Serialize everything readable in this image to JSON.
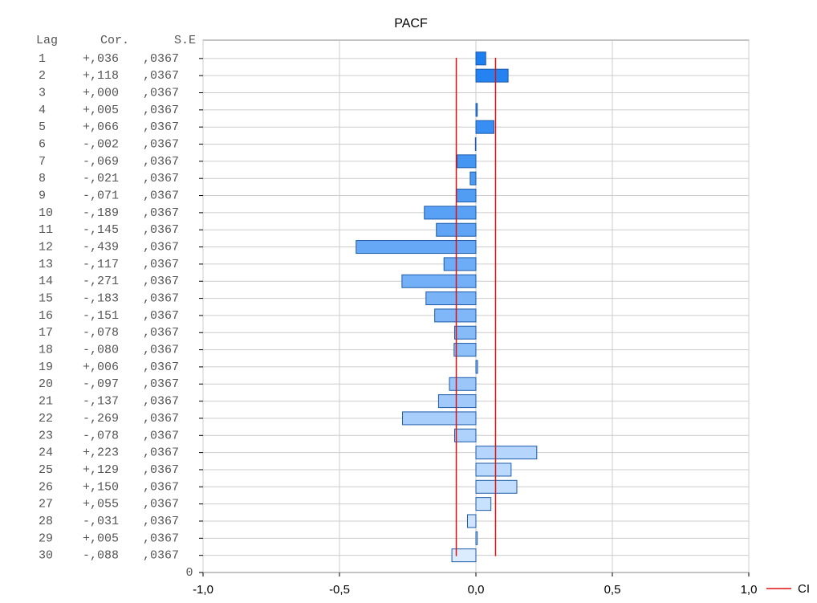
{
  "chart_data": {
    "type": "barh",
    "title": "PACF",
    "table_headers": [
      "Lag",
      "Cor.",
      "S.E"
    ],
    "categories": [
      "1",
      "2",
      "3",
      "4",
      "5",
      "6",
      "7",
      "8",
      "9",
      "10",
      "11",
      "12",
      "13",
      "14",
      "15",
      "16",
      "17",
      "18",
      "19",
      "20",
      "21",
      "22",
      "23",
      "24",
      "25",
      "26",
      "27",
      "28",
      "29",
      "30"
    ],
    "corner_label": "0",
    "values": [
      0.036,
      0.118,
      0.0,
      0.005,
      0.066,
      -0.002,
      -0.069,
      -0.021,
      -0.071,
      -0.189,
      -0.145,
      -0.439,
      -0.117,
      -0.271,
      -0.183,
      -0.151,
      -0.078,
      -0.08,
      0.006,
      -0.097,
      -0.137,
      -0.269,
      -0.078,
      0.223,
      0.129,
      0.15,
      0.055,
      -0.031,
      0.005,
      -0.088
    ],
    "value_labels": [
      "+,036",
      "+,118",
      "+,000",
      "+,005",
      "+,066",
      "-,002",
      "-,069",
      "-,021",
      "-,071",
      "-,189",
      "-,145",
      "-,439",
      "-,117",
      "-,271",
      "-,183",
      "-,151",
      "-,078",
      "-,080",
      "+,006",
      "-,097",
      "-,137",
      "-,269",
      "-,078",
      "+,223",
      "+,129",
      "+,150",
      "+,055",
      "-,031",
      "+,005",
      "-,088"
    ],
    "se": [
      0.0367,
      0.0367,
      0.0367,
      0.0367,
      0.0367,
      0.0367,
      0.0367,
      0.0367,
      0.0367,
      0.0367,
      0.0367,
      0.0367,
      0.0367,
      0.0367,
      0.0367,
      0.0367,
      0.0367,
      0.0367,
      0.0367,
      0.0367,
      0.0367,
      0.0367,
      0.0367,
      0.0367,
      0.0367,
      0.0367,
      0.0367,
      0.0367,
      0.0367,
      0.0367
    ],
    "se_labels": [
      ",0367",
      ",0367",
      ",0367",
      ",0367",
      ",0367",
      ",0367",
      ",0367",
      ",0367",
      ",0367",
      ",0367",
      ",0367",
      ",0367",
      ",0367",
      ",0367",
      ",0367",
      ",0367",
      ",0367",
      ",0367",
      ",0367",
      ",0367",
      ",0367",
      ",0367",
      ",0367",
      ",0367",
      ",0367",
      ",0367",
      ",0367",
      ",0367",
      ",0367",
      ",0367"
    ],
    "color_range": [
      "#1e7ff0",
      "#dcecff"
    ],
    "edge_color": "#1c5aa8",
    "ci": [
      -0.072,
      0.072
    ],
    "ci_name": "CI",
    "ci_color": "#e01010",
    "xlim": [
      -1,
      1
    ],
    "xticks": [
      {
        "value": -1,
        "label": "-1,0"
      },
      {
        "value": -0.5,
        "label": "-0,5"
      },
      {
        "value": 0,
        "label": "0,0"
      },
      {
        "value": 0.5,
        "label": "0,5"
      },
      {
        "value": 1,
        "label": "1,0"
      }
    ],
    "grid": true
  }
}
